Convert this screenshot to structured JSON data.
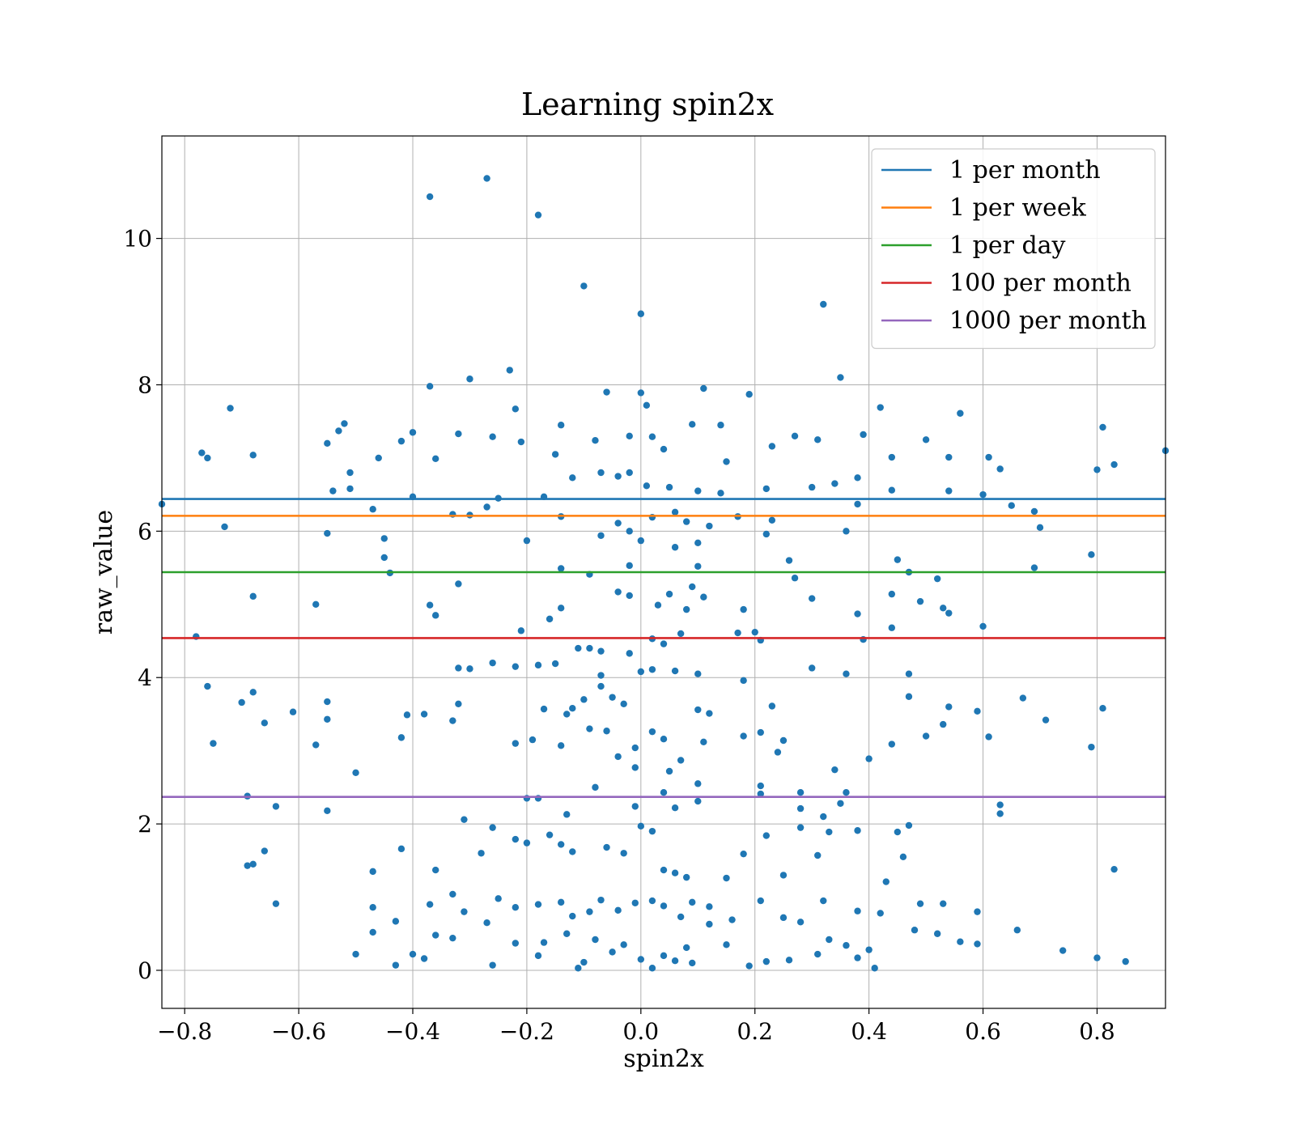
{
  "chart_data": {
    "type": "scatter",
    "title": "Learning spin2x",
    "xlabel": "spin2x",
    "ylabel": "raw_value",
    "xlim": [
      -0.84,
      0.92
    ],
    "ylim": [
      -0.52,
      11.4
    ],
    "xticks": [
      -0.8,
      -0.6,
      -0.4,
      -0.2,
      0.0,
      0.2,
      0.4,
      0.6,
      0.8
    ],
    "xtick_labels": [
      "−0.8",
      "−0.6",
      "−0.4",
      "−0.2",
      "0.0",
      "0.2",
      "0.4",
      "0.6",
      "0.8"
    ],
    "yticks": [
      0,
      2,
      4,
      6,
      8,
      10
    ],
    "ytick_labels": [
      "0",
      "2",
      "4",
      "6",
      "8",
      "10"
    ],
    "grid": true,
    "legend_position": "top-right",
    "point_color": "#1f77b4",
    "hlines": [
      {
        "name": "1 per month",
        "y": 6.44,
        "color": "#1f77b4"
      },
      {
        "name": "1 per week",
        "y": 6.21,
        "color": "#ff7f0e"
      },
      {
        "name": "1 per day",
        "y": 5.44,
        "color": "#2ca02c"
      },
      {
        "name": "100 per month",
        "y": 4.54,
        "color": "#d62728"
      },
      {
        "name": "1000 per month",
        "y": 2.37,
        "color": "#9467bd"
      }
    ],
    "points": [
      [
        -0.27,
        10.82
      ],
      [
        -0.37,
        10.57
      ],
      [
        -0.18,
        10.32
      ],
      [
        -0.1,
        9.35
      ],
      [
        0.32,
        9.1
      ],
      [
        0.0,
        8.97
      ],
      [
        -0.23,
        8.2
      ],
      [
        -0.3,
        8.08
      ],
      [
        0.35,
        8.1
      ],
      [
        -0.37,
        7.98
      ],
      [
        0.11,
        7.95
      ],
      [
        -0.06,
        7.9
      ],
      [
        0.0,
        7.89
      ],
      [
        0.19,
        7.87
      ],
      [
        0.42,
        7.69
      ],
      [
        -0.72,
        7.68
      ],
      [
        -0.22,
        7.67
      ],
      [
        0.01,
        7.72
      ],
      [
        0.56,
        7.61
      ],
      [
        -0.52,
        7.47
      ],
      [
        -0.14,
        7.45
      ],
      [
        0.14,
        7.45
      ],
      [
        0.81,
        7.42
      ],
      [
        -0.53,
        7.37
      ],
      [
        -0.4,
        7.35
      ],
      [
        -0.32,
        7.33
      ],
      [
        0.39,
        7.32
      ],
      [
        0.27,
        7.3
      ],
      [
        0.02,
        7.29
      ],
      [
        -0.77,
        7.07
      ],
      [
        -0.76,
        7.0
      ],
      [
        -0.68,
        7.04
      ],
      [
        -0.55,
        7.2
      ],
      [
        -0.46,
        7.0
      ],
      [
        -0.42,
        7.23
      ],
      [
        -0.36,
        6.99
      ],
      [
        -0.26,
        7.29
      ],
      [
        -0.21,
        7.22
      ],
      [
        -0.15,
        7.05
      ],
      [
        -0.08,
        7.24
      ],
      [
        -0.02,
        7.3
      ],
      [
        0.04,
        7.12
      ],
      [
        0.09,
        7.46
      ],
      [
        0.15,
        6.95
      ],
      [
        0.23,
        7.16
      ],
      [
        0.31,
        7.25
      ],
      [
        0.44,
        7.01
      ],
      [
        0.5,
        7.25
      ],
      [
        0.54,
        7.01
      ],
      [
        0.61,
        7.01
      ],
      [
        0.63,
        6.85
      ],
      [
        0.83,
        6.91
      ],
      [
        0.92,
        7.1
      ],
      [
        0.8,
        6.84
      ],
      [
        -0.84,
        6.37
      ],
      [
        -0.54,
        6.55
      ],
      [
        -0.51,
        6.58
      ],
      [
        -0.51,
        6.8
      ],
      [
        -0.47,
        6.3
      ],
      [
        -0.4,
        6.47
      ],
      [
        -0.33,
        6.23
      ],
      [
        -0.3,
        6.22
      ],
      [
        -0.27,
        6.33
      ],
      [
        -0.25,
        6.45
      ],
      [
        -0.17,
        6.47
      ],
      [
        -0.12,
        6.73
      ],
      [
        -0.07,
        6.8
      ],
      [
        -0.04,
        6.75
      ],
      [
        -0.02,
        6.8
      ],
      [
        0.01,
        6.62
      ],
      [
        0.05,
        6.6
      ],
      [
        0.1,
        6.55
      ],
      [
        0.14,
        6.52
      ],
      [
        0.22,
        6.58
      ],
      [
        0.3,
        6.6
      ],
      [
        0.34,
        6.65
      ],
      [
        0.38,
        6.73
      ],
      [
        0.44,
        6.56
      ],
      [
        0.54,
        6.55
      ],
      [
        0.6,
        6.5
      ],
      [
        0.65,
        6.35
      ],
      [
        -0.73,
        6.06
      ],
      [
        -0.55,
        5.97
      ],
      [
        -0.45,
        5.9
      ],
      [
        -0.2,
        5.87
      ],
      [
        -0.14,
        6.2
      ],
      [
        -0.07,
        5.94
      ],
      [
        -0.04,
        6.11
      ],
      [
        -0.02,
        6.0
      ],
      [
        0.0,
        5.87
      ],
      [
        0.02,
        6.19
      ],
      [
        0.06,
        6.26
      ],
      [
        0.08,
        6.13
      ],
      [
        0.1,
        5.84
      ],
      [
        0.12,
        6.07
      ],
      [
        0.17,
        6.2
      ],
      [
        0.22,
        5.96
      ],
      [
        0.23,
        6.15
      ],
      [
        0.36,
        6.0
      ],
      [
        0.38,
        6.37
      ],
      [
        0.69,
        6.27
      ],
      [
        0.7,
        6.05
      ],
      [
        -0.45,
        5.64
      ],
      [
        -0.44,
        5.43
      ],
      [
        -0.14,
        5.49
      ],
      [
        -0.09,
        5.41
      ],
      [
        -0.02,
        5.53
      ],
      [
        0.06,
        5.78
      ],
      [
        0.1,
        5.52
      ],
      [
        0.26,
        5.6
      ],
      [
        0.27,
        5.36
      ],
      [
        0.45,
        5.61
      ],
      [
        0.47,
        5.44
      ],
      [
        0.52,
        5.35
      ],
      [
        0.69,
        5.5
      ],
      [
        0.79,
        5.68
      ],
      [
        -0.68,
        5.11
      ],
      [
        -0.57,
        5.0
      ],
      [
        -0.37,
        4.99
      ],
      [
        -0.36,
        4.85
      ],
      [
        -0.32,
        5.28
      ],
      [
        -0.16,
        4.8
      ],
      [
        -0.14,
        4.95
      ],
      [
        -0.04,
        5.17
      ],
      [
        -0.02,
        5.12
      ],
      [
        0.03,
        4.99
      ],
      [
        0.05,
        5.14
      ],
      [
        0.08,
        4.93
      ],
      [
        0.09,
        5.24
      ],
      [
        0.11,
        5.1
      ],
      [
        0.18,
        4.93
      ],
      [
        0.3,
        5.08
      ],
      [
        0.38,
        4.87
      ],
      [
        0.44,
        5.14
      ],
      [
        0.49,
        5.04
      ],
      [
        0.53,
        4.95
      ],
      [
        0.54,
        4.88
      ],
      [
        0.6,
        4.7
      ],
      [
        -0.78,
        4.56
      ],
      [
        -0.21,
        4.64
      ],
      [
        -0.11,
        4.4
      ],
      [
        -0.09,
        4.4
      ],
      [
        -0.07,
        4.36
      ],
      [
        -0.02,
        4.33
      ],
      [
        0.02,
        4.53
      ],
      [
        0.04,
        4.46
      ],
      [
        0.07,
        4.6
      ],
      [
        0.17,
        4.61
      ],
      [
        0.2,
        4.62
      ],
      [
        0.21,
        4.51
      ],
      [
        0.39,
        4.52
      ],
      [
        0.44,
        4.68
      ],
      [
        -0.32,
        4.13
      ],
      [
        -0.3,
        4.12
      ],
      [
        -0.26,
        4.2
      ],
      [
        -0.22,
        4.15
      ],
      [
        -0.18,
        4.17
      ],
      [
        -0.15,
        4.19
      ],
      [
        -0.07,
        4.03
      ],
      [
        0.0,
        4.08
      ],
      [
        0.02,
        4.11
      ],
      [
        0.06,
        4.09
      ],
      [
        0.1,
        4.05
      ],
      [
        0.18,
        3.96
      ],
      [
        0.3,
        4.13
      ],
      [
        0.36,
        4.05
      ],
      [
        0.47,
        4.05
      ],
      [
        -0.76,
        3.88
      ],
      [
        -0.7,
        3.66
      ],
      [
        -0.68,
        3.8
      ],
      [
        -0.61,
        3.53
      ],
      [
        -0.55,
        3.67
      ],
      [
        -0.41,
        3.49
      ],
      [
        -0.38,
        3.5
      ],
      [
        -0.32,
        3.64
      ],
      [
        -0.17,
        3.57
      ],
      [
        -0.13,
        3.5
      ],
      [
        -0.12,
        3.58
      ],
      [
        -0.1,
        3.7
      ],
      [
        -0.07,
        3.88
      ],
      [
        -0.05,
        3.73
      ],
      [
        -0.03,
        3.64
      ],
      [
        0.1,
        3.56
      ],
      [
        0.12,
        3.51
      ],
      [
        0.23,
        3.61
      ],
      [
        0.47,
        3.74
      ],
      [
        0.54,
        3.6
      ],
      [
        0.59,
        3.54
      ],
      [
        0.67,
        3.72
      ],
      [
        0.71,
        3.42
      ],
      [
        0.81,
        3.58
      ],
      [
        -0.75,
        3.1
      ],
      [
        -0.66,
        3.38
      ],
      [
        -0.57,
        3.08
      ],
      [
        -0.55,
        3.43
      ],
      [
        -0.42,
        3.18
      ],
      [
        -0.33,
        3.41
      ],
      [
        -0.22,
        3.1
      ],
      [
        -0.19,
        3.15
      ],
      [
        -0.14,
        3.07
      ],
      [
        -0.09,
        3.3
      ],
      [
        -0.06,
        3.27
      ],
      [
        -0.04,
        2.92
      ],
      [
        -0.01,
        3.04
      ],
      [
        0.02,
        3.26
      ],
      [
        0.04,
        3.16
      ],
      [
        0.07,
        2.87
      ],
      [
        0.11,
        3.12
      ],
      [
        0.18,
        3.2
      ],
      [
        0.21,
        3.25
      ],
      [
        0.25,
        3.14
      ],
      [
        0.34,
        2.74
      ],
      [
        0.4,
        2.89
      ],
      [
        0.44,
        3.09
      ],
      [
        0.5,
        3.2
      ],
      [
        0.53,
        3.36
      ],
      [
        0.61,
        3.19
      ],
      [
        0.79,
        3.05
      ],
      [
        -0.5,
        2.7
      ],
      [
        -0.08,
        2.5
      ],
      [
        -0.01,
        2.77
      ],
      [
        0.05,
        2.72
      ],
      [
        0.1,
        2.55
      ],
      [
        0.21,
        2.52
      ],
      [
        0.24,
        2.98
      ],
      [
        0.28,
        2.43
      ],
      [
        0.32,
        2.1
      ],
      [
        0.36,
        2.43
      ],
      [
        -0.69,
        2.38
      ],
      [
        -0.64,
        2.24
      ],
      [
        -0.55,
        2.18
      ],
      [
        -0.31,
        2.06
      ],
      [
        -0.2,
        2.35
      ],
      [
        -0.18,
        2.35
      ],
      [
        -0.13,
        2.13
      ],
      [
        -0.01,
        2.24
      ],
      [
        0.04,
        2.43
      ],
      [
        0.06,
        2.22
      ],
      [
        0.1,
        2.31
      ],
      [
        0.21,
        2.41
      ],
      [
        0.28,
        2.21
      ],
      [
        0.35,
        2.28
      ],
      [
        0.63,
        2.26
      ],
      [
        0.63,
        2.14
      ],
      [
        -0.69,
        1.43
      ],
      [
        -0.68,
        1.45
      ],
      [
        -0.66,
        1.63
      ],
      [
        -0.47,
        1.35
      ],
      [
        -0.42,
        1.66
      ],
      [
        -0.36,
        1.37
      ],
      [
        -0.28,
        1.6
      ],
      [
        -0.26,
        1.95
      ],
      [
        -0.22,
        1.79
      ],
      [
        -0.2,
        1.74
      ],
      [
        -0.16,
        1.85
      ],
      [
        -0.14,
        1.72
      ],
      [
        -0.12,
        1.62
      ],
      [
        -0.06,
        1.68
      ],
      [
        -0.03,
        1.6
      ],
      [
        0.0,
        1.97
      ],
      [
        0.02,
        1.9
      ],
      [
        0.04,
        1.37
      ],
      [
        0.06,
        1.33
      ],
      [
        0.08,
        1.27
      ],
      [
        0.15,
        1.26
      ],
      [
        0.18,
        1.59
      ],
      [
        0.22,
        1.84
      ],
      [
        0.25,
        1.3
      ],
      [
        0.28,
        1.95
      ],
      [
        0.31,
        1.57
      ],
      [
        0.33,
        1.89
      ],
      [
        0.38,
        1.91
      ],
      [
        0.45,
        1.89
      ],
      [
        0.46,
        1.55
      ],
      [
        0.47,
        1.98
      ],
      [
        0.43,
        1.21
      ],
      [
        -0.64,
        0.91
      ],
      [
        -0.47,
        0.86
      ],
      [
        -0.43,
        0.67
      ],
      [
        -0.37,
        0.9
      ],
      [
        -0.33,
        1.04
      ],
      [
        -0.31,
        0.8
      ],
      [
        -0.27,
        0.65
      ],
      [
        -0.25,
        0.98
      ],
      [
        -0.22,
        0.86
      ],
      [
        -0.18,
        0.9
      ],
      [
        -0.14,
        0.93
      ],
      [
        -0.12,
        0.74
      ],
      [
        -0.09,
        0.8
      ],
      [
        -0.07,
        0.96
      ],
      [
        -0.04,
        0.82
      ],
      [
        -0.01,
        0.92
      ],
      [
        0.02,
        0.95
      ],
      [
        0.04,
        0.88
      ],
      [
        0.07,
        0.73
      ],
      [
        0.09,
        0.93
      ],
      [
        0.12,
        0.87
      ],
      [
        0.16,
        0.69
      ],
      [
        0.21,
        0.95
      ],
      [
        0.25,
        0.72
      ],
      [
        0.28,
        0.66
      ],
      [
        0.32,
        0.95
      ],
      [
        0.38,
        0.81
      ],
      [
        0.42,
        0.78
      ],
      [
        0.49,
        0.91
      ],
      [
        0.53,
        0.91
      ],
      [
        0.59,
        0.8
      ],
      [
        -0.5,
        0.22
      ],
      [
        -0.47,
        0.52
      ],
      [
        -0.4,
        0.22
      ],
      [
        -0.38,
        0.16
      ],
      [
        -0.36,
        0.48
      ],
      [
        -0.33,
        0.44
      ],
      [
        -0.26,
        0.07
      ],
      [
        -0.22,
        0.37
      ],
      [
        -0.18,
        0.2
      ],
      [
        -0.17,
        0.38
      ],
      [
        -0.13,
        0.5
      ],
      [
        -0.1,
        0.11
      ],
      [
        -0.08,
        0.42
      ],
      [
        -0.05,
        0.25
      ],
      [
        -0.03,
        0.35
      ],
      [
        0.0,
        0.15
      ],
      [
        0.02,
        0.03
      ],
      [
        0.04,
        0.2
      ],
      [
        0.06,
        0.13
      ],
      [
        0.08,
        0.31
      ],
      [
        0.09,
        0.1
      ],
      [
        0.12,
        0.63
      ],
      [
        0.15,
        0.35
      ],
      [
        0.19,
        0.06
      ],
      [
        0.22,
        0.12
      ],
      [
        0.26,
        0.14
      ],
      [
        0.31,
        0.22
      ],
      [
        0.33,
        0.42
      ],
      [
        0.38,
        0.17
      ],
      [
        0.4,
        0.28
      ],
      [
        0.41,
        0.03
      ],
      [
        0.48,
        0.55
      ],
      [
        0.52,
        0.5
      ],
      [
        0.56,
        0.39
      ],
      [
        0.59,
        0.36
      ],
      [
        0.66,
        0.55
      ],
      [
        0.74,
        0.27
      ],
      [
        0.8,
        0.17
      ],
      [
        0.83,
        1.38
      ],
      [
        0.85,
        0.12
      ],
      [
        -0.43,
        0.07
      ],
      [
        -0.11,
        0.03
      ],
      [
        0.36,
        0.34
      ]
    ]
  }
}
